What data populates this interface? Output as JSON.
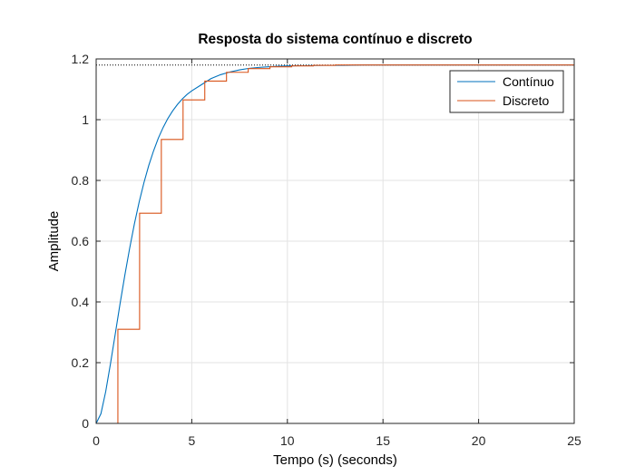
{
  "chart_data": {
    "type": "line",
    "title": "Resposta do sistema contínuo e discreto",
    "xlabel": "Tempo (s) (seconds)",
    "ylabel": "Amplitude",
    "xlim": [
      0,
      25
    ],
    "ylim": [
      0,
      1.2
    ],
    "xticks": [
      0,
      5,
      10,
      15,
      20,
      25
    ],
    "yticks": [
      0,
      0.2,
      0.4,
      0.6,
      0.8,
      1,
      1.2
    ],
    "xtick_labels": [
      "0",
      "5",
      "10",
      "15",
      "20",
      "25"
    ],
    "ytick_labels": [
      "0",
      "0.2",
      "0.4",
      "0.6",
      "0.8",
      "1",
      "1.2"
    ],
    "grid": true,
    "legend_position": "top-right",
    "steady_state_value": 1.18,
    "series": [
      {
        "name": "Contínuo",
        "style": "line",
        "color": "#0072BD",
        "x": [
          0,
          0.25,
          0.5,
          0.75,
          1.0,
          1.25,
          1.5,
          1.75,
          2.0,
          2.25,
          2.5,
          2.75,
          3.0,
          3.25,
          3.5,
          3.75,
          4.0,
          4.25,
          4.5,
          4.75,
          5.0,
          5.5,
          6.0,
          6.5,
          7.0,
          7.5,
          8.0,
          8.5,
          9.0,
          9.5,
          10.0,
          11.0,
          12.0,
          13.0,
          14.0,
          15.0,
          16.0,
          18.0,
          20.0,
          22.0,
          25.0
        ],
        "y": [
          0,
          0.032,
          0.105,
          0.197,
          0.295,
          0.394,
          0.488,
          0.576,
          0.657,
          0.729,
          0.793,
          0.849,
          0.897,
          0.939,
          0.974,
          1.004,
          1.029,
          1.05,
          1.068,
          1.083,
          1.095,
          1.115,
          1.135,
          1.148,
          1.157,
          1.164,
          1.169,
          1.172,
          1.174,
          1.176,
          1.177,
          1.178,
          1.179,
          1.179,
          1.18,
          1.18,
          1.18,
          1.18,
          1.18,
          1.18,
          1.18
        ]
      },
      {
        "name": "Discreto",
        "style": "stairs",
        "color": "#D95319",
        "x": [
          0,
          1.136,
          2.272,
          3.408,
          4.544,
          5.68,
          6.816,
          7.952,
          9.088,
          10.224,
          11.36,
          12.496,
          13.632,
          25.0
        ],
        "y": [
          0,
          0.31,
          0.692,
          0.935,
          1.065,
          1.127,
          1.156,
          1.168,
          1.174,
          1.177,
          1.179,
          1.18,
          1.18,
          1.18
        ]
      }
    ]
  }
}
